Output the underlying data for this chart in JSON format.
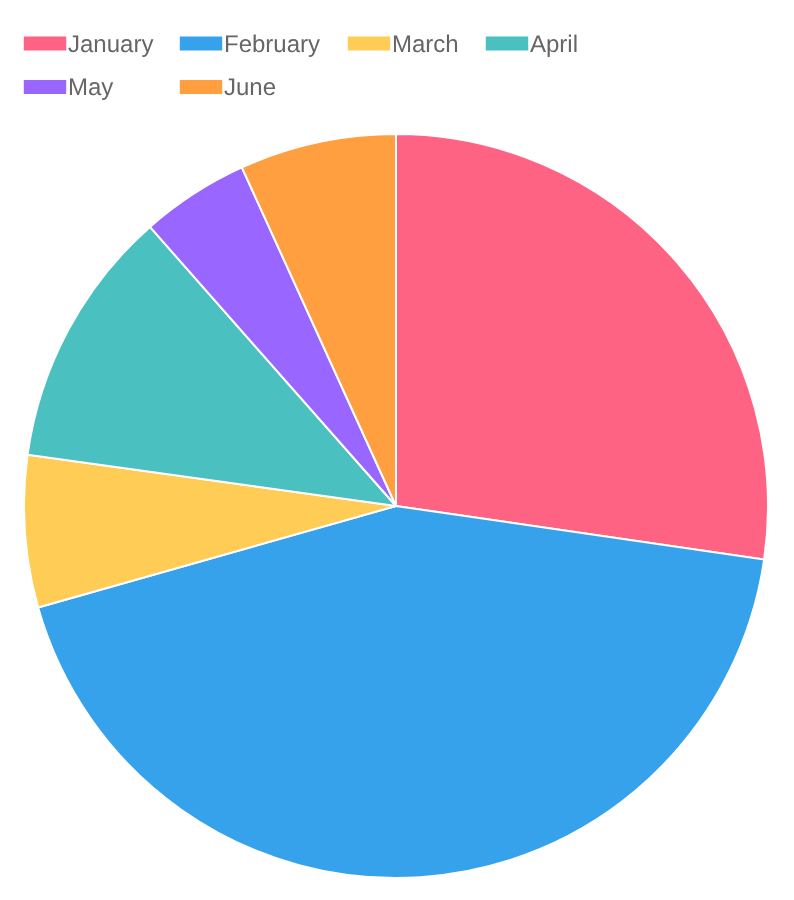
{
  "chart_data": {
    "type": "pie",
    "categories": [
      "January",
      "February",
      "March",
      "April",
      "May",
      "June"
    ],
    "values": [
      27.3,
      43.3,
      6.6,
      11.3,
      4.7,
      6.8
    ],
    "colors": [
      "#ff6384",
      "#36a2eb",
      "#ffcd56",
      "#4bc0c0",
      "#9966ff",
      "#ff9f40"
    ],
    "legend": "top"
  }
}
